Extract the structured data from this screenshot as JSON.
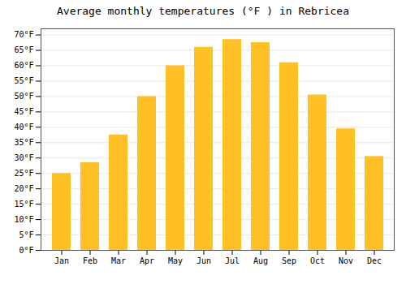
{
  "chart_data": {
    "type": "bar",
    "title": "Average monthly temperatures (°F ) in Rebricea",
    "categories": [
      "Jan",
      "Feb",
      "Mar",
      "Apr",
      "May",
      "Jun",
      "Jul",
      "Aug",
      "Sep",
      "Oct",
      "Nov",
      "Dec"
    ],
    "values": [
      25,
      28.5,
      37.5,
      50,
      60,
      66,
      68.5,
      67.5,
      61,
      50.5,
      39.5,
      30.5
    ],
    "color": "#FFC125",
    "ylim": [
      0,
      72
    ],
    "yticks": [
      {
        "value": 0,
        "label": "0°F"
      },
      {
        "value": 5,
        "label": "5°F"
      },
      {
        "value": 10,
        "label": "10°F"
      },
      {
        "value": 15,
        "label": "15°F"
      },
      {
        "value": 20,
        "label": "20°F"
      },
      {
        "value": 25,
        "label": "25°F"
      },
      {
        "value": 30,
        "label": "30°F"
      },
      {
        "value": 35,
        "label": "35°F"
      },
      {
        "value": 40,
        "label": "40°F"
      },
      {
        "value": 45,
        "label": "45°F"
      },
      {
        "value": 50,
        "label": "50°F"
      },
      {
        "value": 55,
        "label": "55°F"
      },
      {
        "value": 60,
        "label": "60°F"
      },
      {
        "value": 65,
        "label": "65°F"
      },
      {
        "value": 70,
        "label": "70°F"
      }
    ],
    "grid": true
  }
}
